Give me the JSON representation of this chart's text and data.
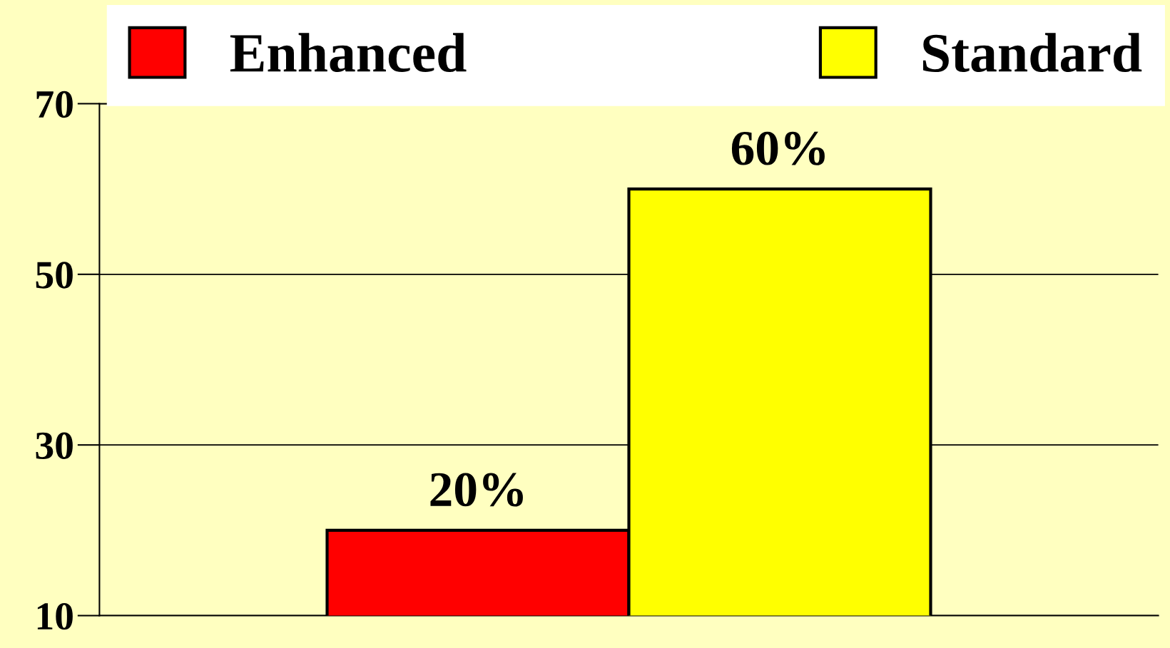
{
  "chart_data": {
    "type": "bar",
    "categories": [
      null
    ],
    "series": [
      {
        "name": "Enhanced",
        "color": "#ff0000",
        "values": [
          20
        ],
        "value_labels": [
          "20%"
        ]
      },
      {
        "name": "Standard",
        "color": "#ffff00",
        "values": [
          60
        ],
        "value_labels": [
          "60%"
        ]
      }
    ],
    "ylim": [
      10,
      70
    ],
    "yticks": [
      10,
      30,
      50,
      70
    ],
    "grid": "y",
    "legend": "top",
    "tick_labels": "y"
  }
}
